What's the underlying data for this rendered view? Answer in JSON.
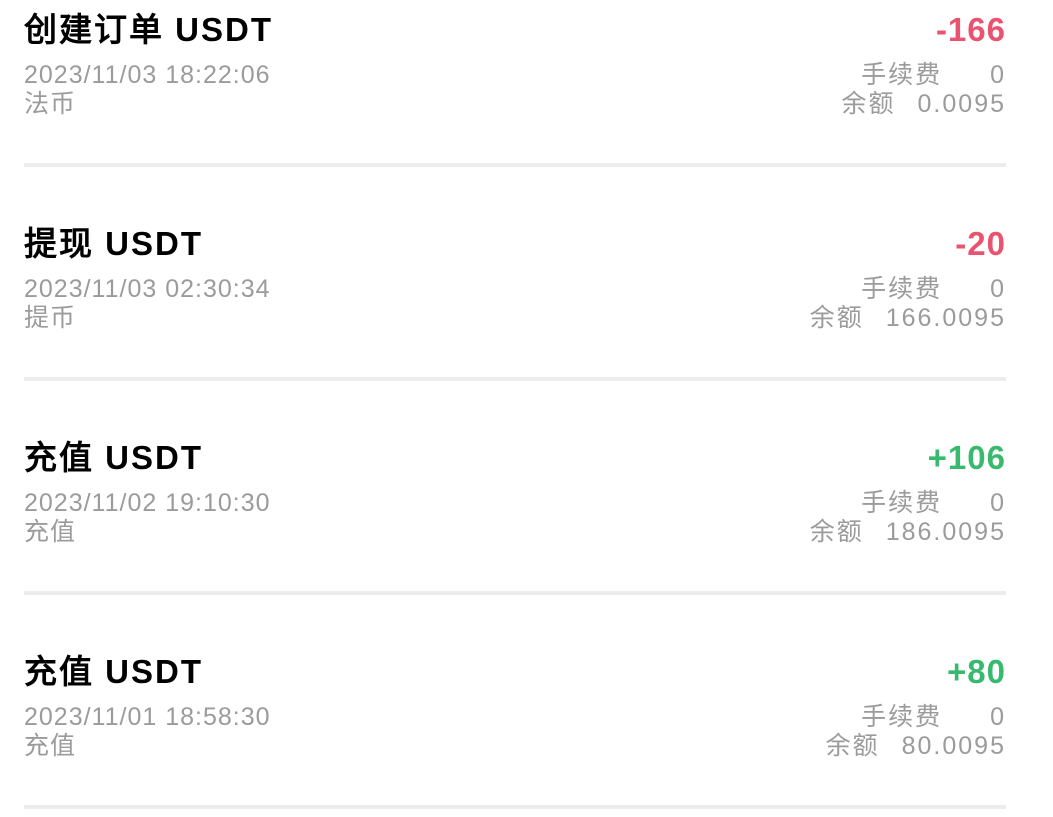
{
  "page": {
    "background": "#ffffff"
  },
  "colors": {
    "primary_text": "#000000",
    "secondary_text": "#9b9b9b",
    "negative_amount": "#e9536f",
    "positive_amount": "#38ba6e",
    "divider": "#ececec"
  },
  "labels": {
    "fee": "手续费",
    "balance": "余额"
  },
  "entries": [
    {
      "title": "创建订单 USDT",
      "datetime": "2023/11/03 18:22:06",
      "type": "法币",
      "amount": "-166",
      "direction": "negative",
      "fee": "0",
      "balance": "0.0095"
    },
    {
      "title": "提现 USDT",
      "datetime": "2023/11/03 02:30:34",
      "type": "提币",
      "amount": "-20",
      "direction": "negative",
      "fee": "0",
      "balance": "166.0095"
    },
    {
      "title": "充值 USDT",
      "datetime": "2023/11/02 19:10:30",
      "type": "充值",
      "amount": "+106",
      "direction": "positive",
      "fee": "0",
      "balance": "186.0095"
    },
    {
      "title": "充值 USDT",
      "datetime": "2023/11/01 18:58:30",
      "type": "充值",
      "amount": "+80",
      "direction": "positive",
      "fee": "0",
      "balance": "80.0095"
    }
  ]
}
